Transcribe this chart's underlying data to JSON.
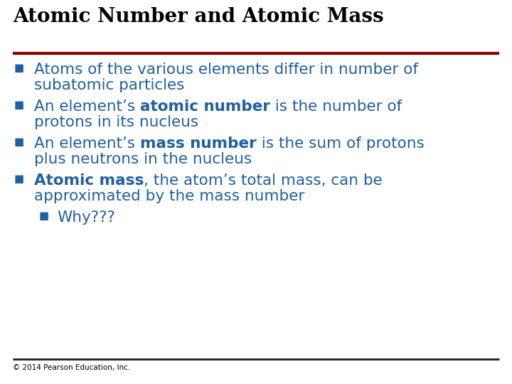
{
  "title": "Atomic Number and Atomic Mass",
  "title_color": "#000000",
  "title_fontsize": 20,
  "title_bold": true,
  "separator_color_top": "#8B0000",
  "separator_color_bottom": "#1a1a1a",
  "bg_color": "#FFFFFF",
  "bullet_color": "#2060A0",
  "text_color": "#2060A0",
  "footer_text": "© 2014 Pearson Education, Inc.",
  "footer_color": "#000000",
  "footer_fontsize": 7.5,
  "bullet_char": "■",
  "body_fontsize": 15.5,
  "bullets": [
    {
      "level": 1,
      "lines": [
        [
          {
            "text": "Atoms of the various elements differ in number of",
            "bold": false
          }
        ],
        [
          {
            "text": "subatomic particles",
            "bold": false
          }
        ]
      ]
    },
    {
      "level": 1,
      "lines": [
        [
          {
            "text": "An element’s ",
            "bold": false
          },
          {
            "text": "atomic number",
            "bold": true
          },
          {
            "text": " is the number of",
            "bold": false
          }
        ],
        [
          {
            "text": "protons in its nucleus",
            "bold": false
          }
        ]
      ]
    },
    {
      "level": 1,
      "lines": [
        [
          {
            "text": "An element’s ",
            "bold": false
          },
          {
            "text": "mass number",
            "bold": true
          },
          {
            "text": " is the sum of protons",
            "bold": false
          }
        ],
        [
          {
            "text": "plus neutrons in the nucleus",
            "bold": false
          }
        ]
      ]
    },
    {
      "level": 1,
      "lines": [
        [
          {
            "text": "Atomic mass",
            "bold": true
          },
          {
            "text": ", the atom’s total mass, can be",
            "bold": false
          }
        ],
        [
          {
            "text": "approximated by the mass number",
            "bold": false
          }
        ]
      ]
    },
    {
      "level": 2,
      "lines": [
        [
          {
            "text": "Why???",
            "bold": false
          }
        ]
      ]
    }
  ]
}
